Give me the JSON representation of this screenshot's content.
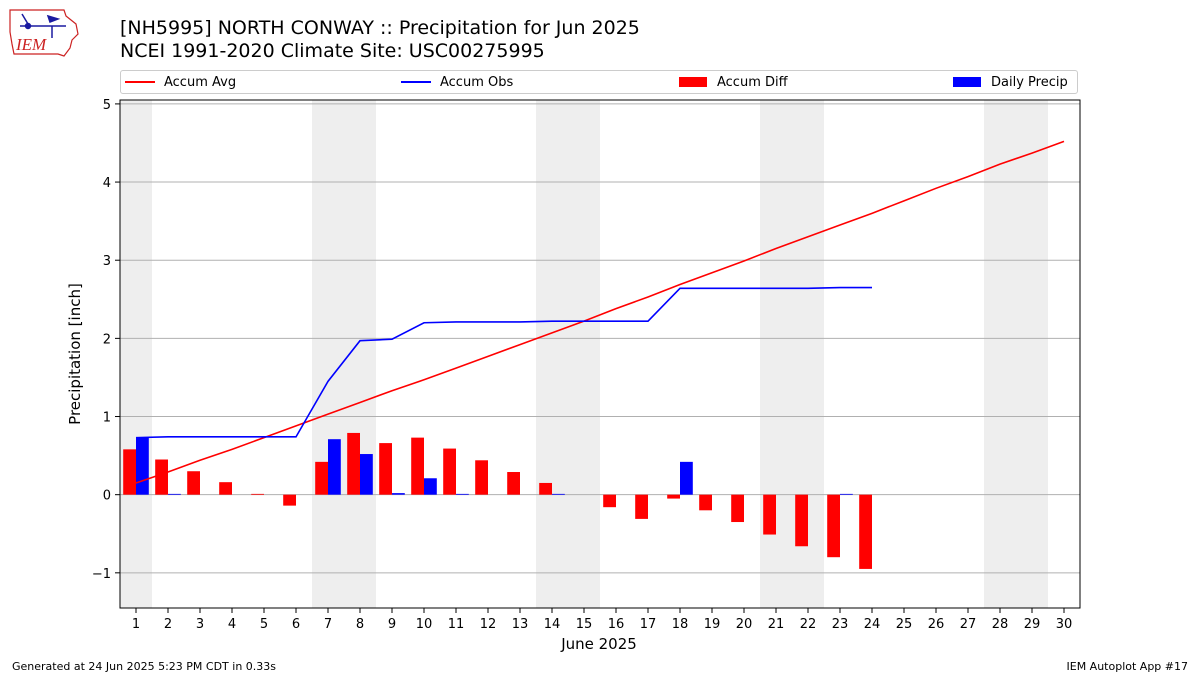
{
  "header": {
    "logo_text": "IEM",
    "title_line1": "[NH5995] NORTH CONWAY :: Precipitation for Jun 2025",
    "title_line2": "NCEI 1991-2020 Climate Site: USC00275995"
  },
  "legend": {
    "accum_avg": "Accum Avg",
    "accum_obs": "Accum Obs",
    "accum_diff": "Accum Diff",
    "daily_precip": "Daily Precip"
  },
  "colors": {
    "accum_avg": "#ff0000",
    "accum_obs": "#0000ff",
    "accum_diff": "#ff0000",
    "daily_precip": "#0000ff",
    "weekend_shade": "#eeeeee"
  },
  "footer": {
    "generated": "Generated at 24 Jun 2025 5:23 PM CDT in 0.33s",
    "app": "IEM Autoplot App #17"
  },
  "chart_data": {
    "type": "bar",
    "xlabel": "June 2025",
    "ylabel": "Precipitation [inch]",
    "xlim": [
      0.5,
      30.5
    ],
    "ylim": [
      -1.45,
      5.05
    ],
    "yticks": [
      -1,
      0,
      1,
      2,
      3,
      4,
      5
    ],
    "ytick_labels": [
      "−1",
      "0",
      "1",
      "2",
      "3",
      "4",
      "5"
    ],
    "grid": "horizontal",
    "legend_position": "top",
    "days": [
      1,
      2,
      3,
      4,
      5,
      6,
      7,
      8,
      9,
      10,
      11,
      12,
      13,
      14,
      15,
      16,
      17,
      18,
      19,
      20,
      21,
      22,
      23,
      24,
      25,
      26,
      27,
      28,
      29,
      30
    ],
    "weekend_days": [
      1,
      7,
      8,
      14,
      15,
      21,
      22,
      28,
      29
    ],
    "series": [
      {
        "name": "Accum Avg",
        "kind": "line",
        "x": [
          1,
          2,
          3,
          4,
          5,
          6,
          7,
          8,
          9,
          10,
          11,
          12,
          13,
          14,
          15,
          16,
          17,
          18,
          19,
          20,
          21,
          22,
          23,
          24,
          25,
          26,
          27,
          28,
          29,
          30
        ],
        "values": [
          0.15,
          0.29,
          0.44,
          0.58,
          0.73,
          0.88,
          1.03,
          1.18,
          1.33,
          1.47,
          1.62,
          1.77,
          1.92,
          2.07,
          2.22,
          2.38,
          2.53,
          2.69,
          2.84,
          2.99,
          3.15,
          3.3,
          3.45,
          3.6,
          3.76,
          3.92,
          4.07,
          4.23,
          4.37,
          4.52
        ]
      },
      {
        "name": "Accum Obs",
        "kind": "line",
        "x": [
          1,
          2,
          3,
          4,
          5,
          6,
          7,
          8,
          9,
          10,
          11,
          12,
          13,
          14,
          15,
          16,
          17,
          18,
          19,
          20,
          21,
          22,
          23,
          24
        ],
        "values": [
          0.73,
          0.74,
          0.74,
          0.74,
          0.74,
          0.74,
          1.45,
          1.97,
          1.99,
          2.2,
          2.21,
          2.21,
          2.21,
          2.22,
          2.22,
          2.22,
          2.22,
          2.64,
          2.64,
          2.64,
          2.64,
          2.64,
          2.65,
          2.65
        ]
      },
      {
        "name": "Accum Diff",
        "kind": "bar",
        "x": [
          1,
          2,
          3,
          4,
          5,
          6,
          7,
          8,
          9,
          10,
          11,
          12,
          13,
          14,
          15,
          16,
          17,
          18,
          19,
          20,
          21,
          22,
          23,
          24
        ],
        "values": [
          0.58,
          0.45,
          0.3,
          0.16,
          0.01,
          -0.14,
          0.42,
          0.79,
          0.66,
          0.73,
          0.59,
          0.44,
          0.29,
          0.15,
          0.0,
          -0.16,
          -0.31,
          -0.05,
          -0.2,
          -0.35,
          -0.51,
          -0.66,
          -0.8,
          -0.95
        ]
      },
      {
        "name": "Daily Precip",
        "kind": "bar",
        "x": [
          1,
          2,
          3,
          4,
          5,
          6,
          7,
          8,
          9,
          10,
          11,
          12,
          13,
          14,
          15,
          16,
          17,
          18,
          19,
          20,
          21,
          22,
          23,
          24
        ],
        "values": [
          0.73,
          0.01,
          0,
          0,
          0,
          0,
          0.71,
          0.52,
          0.02,
          0.21,
          0.01,
          0,
          0,
          0.01,
          0,
          0,
          0,
          0.42,
          0,
          0,
          0,
          0,
          0.01,
          0
        ]
      }
    ]
  }
}
